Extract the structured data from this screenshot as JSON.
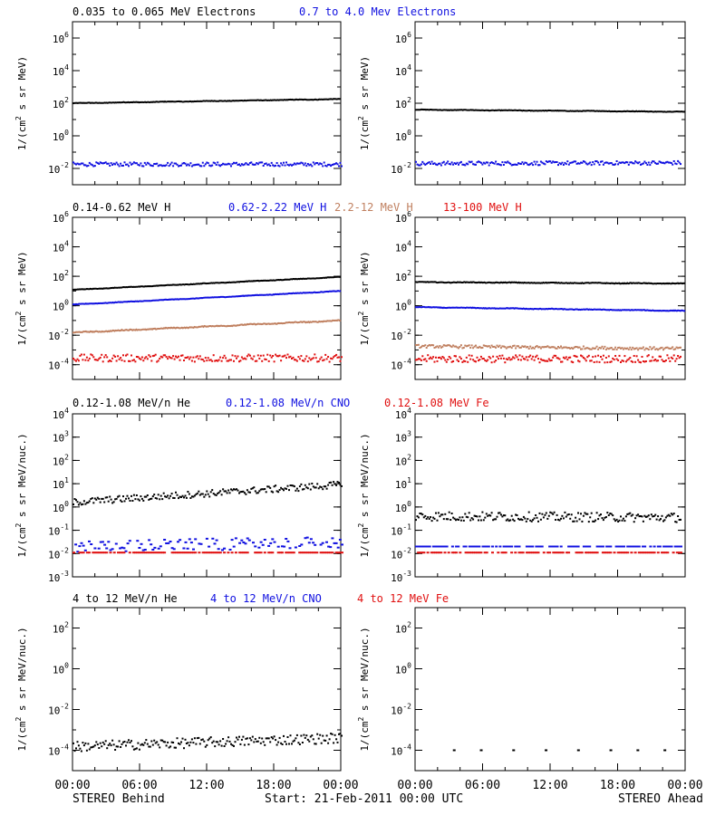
{
  "colors": {
    "black": "#000000",
    "blue": "#1010e0",
    "tan": "#c08060",
    "red": "#e01010"
  },
  "footer": {
    "left": "STEREO Behind",
    "center": "Start: 21-Feb-2011 00:00 UTC",
    "right": "STEREO Ahead"
  },
  "x_ticks": [
    "00:00",
    "06:00",
    "12:00",
    "18:00",
    "00:00"
  ],
  "chart_data": [
    {
      "id": "electrons-behind",
      "type": "scatter",
      "log_y": true,
      "ylim": [
        0.001,
        10000000
      ],
      "y_ticks": [
        {
          "v": 1000000,
          "base": "10",
          "exp": "6"
        },
        {
          "v": 10000,
          "base": "10",
          "exp": "4"
        },
        {
          "v": 100,
          "base": "10",
          "exp": "2"
        },
        {
          "v": 1,
          "base": "10",
          "exp": "0"
        },
        {
          "v": 0.01,
          "base": "10",
          "exp": "-2"
        }
      ],
      "ylabel_parts": {
        "a": "1/(cm",
        "sup": "2",
        "b": " s sr MeV)"
      },
      "series": [
        {
          "name": "0.035 to 0.065 MeV Electrons",
          "color": "black",
          "start": 100,
          "end": 180,
          "noise": 0.03,
          "style": "line"
        },
        {
          "name": "0.7 to 4.0 Mev Electrons",
          "color": "blue",
          "start": 0.018,
          "end": 0.018,
          "noise": 0.12,
          "style": "dots"
        }
      ]
    },
    {
      "id": "electrons-ahead",
      "type": "scatter",
      "log_y": true,
      "ylim": [
        0.001,
        10000000
      ],
      "y_ticks": [
        {
          "v": 1000000,
          "base": "10",
          "exp": "6"
        },
        {
          "v": 10000,
          "base": "10",
          "exp": "4"
        },
        {
          "v": 100,
          "base": "10",
          "exp": "2"
        },
        {
          "v": 1,
          "base": "10",
          "exp": "0"
        },
        {
          "v": 0.01,
          "base": "10",
          "exp": "-2"
        }
      ],
      "ylabel_parts": {
        "a": "1/(cm",
        "sup": "2",
        "b": " s sr MeV)"
      },
      "series": [
        {
          "color": "black",
          "start": 40,
          "end": 30,
          "noise": 0.03,
          "style": "line"
        },
        {
          "color": "blue",
          "start": 0.02,
          "end": 0.022,
          "noise": 0.12,
          "style": "dots"
        }
      ]
    },
    {
      "id": "protons-behind",
      "type": "scatter",
      "log_y": true,
      "ylim": [
        1e-05,
        1000000
      ],
      "y_ticks": [
        {
          "v": 1000000,
          "base": "10",
          "exp": "6"
        },
        {
          "v": 10000,
          "base": "10",
          "exp": "4"
        },
        {
          "v": 100,
          "base": "10",
          "exp": "2"
        },
        {
          "v": 1,
          "base": "10",
          "exp": "0"
        },
        {
          "v": 0.01,
          "base": "10",
          "exp": "-2"
        },
        {
          "v": 0.0001,
          "base": "10",
          "exp": "-4"
        }
      ],
      "ylabel_parts": {
        "a": "1/(cm",
        "sup": "2",
        "b": " s sr MeV)"
      },
      "series": [
        {
          "name": "0.14-0.62 MeV H",
          "color": "black",
          "start": 12,
          "end": 90,
          "noise": 0.03,
          "style": "line"
        },
        {
          "name": "0.62-2.22 MeV H",
          "color": "blue",
          "start": 1.2,
          "end": 10,
          "noise": 0.03,
          "style": "line"
        },
        {
          "name": "2.2-12 MeV H",
          "color": "tan",
          "start": 0.015,
          "end": 0.1,
          "noise": 0.06,
          "style": "line"
        },
        {
          "name": "13-100 MeV H",
          "color": "red",
          "start": 0.00028,
          "end": 0.00028,
          "noise": 0.25,
          "style": "dots"
        }
      ]
    },
    {
      "id": "protons-ahead",
      "type": "scatter",
      "log_y": true,
      "ylim": [
        1e-05,
        1000000
      ],
      "y_ticks": [
        {
          "v": 1000000,
          "base": "10",
          "exp": "6"
        },
        {
          "v": 10000,
          "base": "10",
          "exp": "4"
        },
        {
          "v": 100,
          "base": "10",
          "exp": "2"
        },
        {
          "v": 1,
          "base": "10",
          "exp": "0"
        },
        {
          "v": 0.01,
          "base": "10",
          "exp": "-2"
        },
        {
          "v": 0.0001,
          "base": "10",
          "exp": "-4"
        }
      ],
      "ylabel_parts": {
        "a": "1/(cm",
        "sup": "2",
        "b": " s sr MeV)"
      },
      "series": [
        {
          "color": "black",
          "start": 40,
          "end": 32,
          "noise": 0.04,
          "style": "line"
        },
        {
          "color": "blue",
          "start": 0.8,
          "end": 0.45,
          "noise": 0.04,
          "style": "line"
        },
        {
          "color": "tan",
          "start": 0.0018,
          "end": 0.0012,
          "noise": 0.1,
          "style": "dots"
        },
        {
          "color": "red",
          "start": 0.00025,
          "end": 0.00025,
          "noise": 0.25,
          "style": "dots"
        }
      ]
    },
    {
      "id": "heavy-low-behind",
      "type": "scatter",
      "log_y": true,
      "ylim": [
        0.001,
        10000
      ],
      "y_ticks": [
        {
          "v": 10000,
          "base": "10",
          "exp": "4"
        },
        {
          "v": 1000,
          "base": "10",
          "exp": "3"
        },
        {
          "v": 100,
          "base": "10",
          "exp": "2"
        },
        {
          "v": 10,
          "base": "10",
          "exp": "1"
        },
        {
          "v": 1,
          "base": "10",
          "exp": "0"
        },
        {
          "v": 0.1,
          "base": "10",
          "exp": "-1"
        },
        {
          "v": 0.01,
          "base": "10",
          "exp": "-2"
        },
        {
          "v": 0.001,
          "base": "10",
          "exp": "-3"
        }
      ],
      "ylabel_parts": {
        "a": "1/(cm",
        "sup": "2",
        "b": " s sr MeV/nuc.)"
      },
      "series": [
        {
          "name": "0.12-1.08 MeV/n He",
          "color": "black",
          "start": 1.6,
          "end": 9,
          "noise": 0.15,
          "style": "dots"
        },
        {
          "name": "0.12-1.08 MeV/n CNO",
          "color": "blue",
          "start": 0.02,
          "end": 0.03,
          "noise": 0.25,
          "style": "dashes"
        },
        {
          "name": "0.12-1.08 MeV Fe",
          "color": "red",
          "start": 0.011,
          "end": 0.011,
          "noise": 0.0,
          "style": "dashes"
        }
      ]
    },
    {
      "id": "heavy-low-ahead",
      "type": "scatter",
      "log_y": true,
      "ylim": [
        0.001,
        10000
      ],
      "y_ticks": [
        {
          "v": 10000,
          "base": "10",
          "exp": "4"
        },
        {
          "v": 1000,
          "base": "10",
          "exp": "3"
        },
        {
          "v": 100,
          "base": "10",
          "exp": "2"
        },
        {
          "v": 10,
          "base": "10",
          "exp": "1"
        },
        {
          "v": 1,
          "base": "10",
          "exp": "0"
        },
        {
          "v": 0.1,
          "base": "10",
          "exp": "-1"
        },
        {
          "v": 0.01,
          "base": "10",
          "exp": "-2"
        },
        {
          "v": 0.001,
          "base": "10",
          "exp": "-3"
        }
      ],
      "ylabel_parts": {
        "a": "1/(cm",
        "sup": "2",
        "b": " s sr MeV/nuc.)"
      },
      "series": [
        {
          "color": "black",
          "start": 0.4,
          "end": 0.35,
          "noise": 0.2,
          "style": "dots"
        },
        {
          "color": "blue",
          "start": 0.02,
          "end": 0.02,
          "noise": 0.0,
          "style": "dashes"
        },
        {
          "color": "red",
          "start": 0.011,
          "end": 0.011,
          "noise": 0.0,
          "style": "dashes"
        }
      ]
    },
    {
      "id": "heavy-high-behind",
      "type": "scatter",
      "log_y": true,
      "ylim": [
        1e-05,
        1000
      ],
      "y_ticks": [
        {
          "v": 100,
          "base": "10",
          "exp": "2"
        },
        {
          "v": 1,
          "base": "10",
          "exp": "0"
        },
        {
          "v": 0.01,
          "base": "10",
          "exp": "-2"
        },
        {
          "v": 0.0001,
          "base": "10",
          "exp": "-4"
        }
      ],
      "ylabel_parts": {
        "a": "1/(cm",
        "sup": "2",
        "b": " s sr MeV/nuc.)"
      },
      "series": [
        {
          "name": "4 to 12 MeV/n He",
          "color": "black",
          "start": 0.00015,
          "end": 0.0004,
          "noise": 0.25,
          "style": "dots"
        },
        {
          "name": "4 to 12 MeV/n CNO",
          "color": "blue",
          "start": 1e-05,
          "end": 1e-05,
          "noise": 0.0,
          "style": "none"
        },
        {
          "name": "4 to 12 MeV Fe",
          "color": "red",
          "start": 1e-05,
          "end": 1e-05,
          "noise": 0.0,
          "style": "none"
        }
      ]
    },
    {
      "id": "heavy-high-ahead",
      "type": "scatter",
      "log_y": true,
      "ylim": [
        1e-05,
        1000
      ],
      "y_ticks": [
        {
          "v": 100,
          "base": "10",
          "exp": "2"
        },
        {
          "v": 1,
          "base": "10",
          "exp": "0"
        },
        {
          "v": 0.01,
          "base": "10",
          "exp": "-2"
        },
        {
          "v": 0.0001,
          "base": "10",
          "exp": "-4"
        }
      ],
      "ylabel_parts": {
        "a": "1/(cm",
        "sup": "2",
        "b": " s sr MeV/nuc.)"
      },
      "series": [
        {
          "color": "black",
          "start": 0.0001,
          "end": 0.0001,
          "noise": 0.0,
          "style": "sparse"
        }
      ]
    }
  ]
}
